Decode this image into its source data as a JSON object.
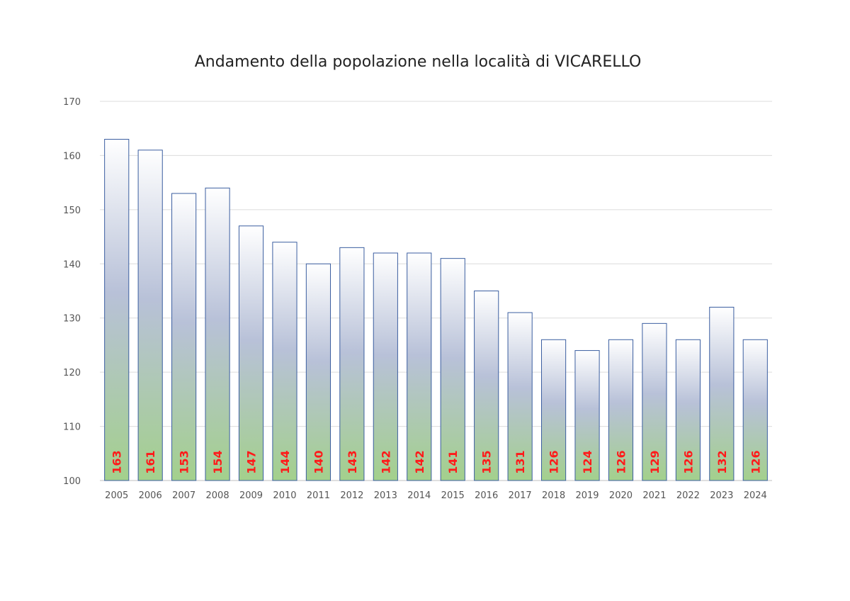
{
  "chart_data": {
    "type": "bar",
    "title": "Andamento della popolazione nella località di VICARELLO",
    "categories": [
      "2005",
      "2006",
      "2007",
      "2008",
      "2009",
      "2010",
      "2011",
      "2012",
      "2013",
      "2014",
      "2015",
      "2016",
      "2017",
      "2018",
      "2019",
      "2020",
      "2021",
      "2022",
      "2023",
      "2024"
    ],
    "values": [
      163,
      161,
      153,
      154,
      147,
      144,
      140,
      143,
      142,
      142,
      141,
      135,
      131,
      126,
      124,
      126,
      129,
      126,
      132,
      126
    ],
    "ylim": [
      100,
      170
    ],
    "yticks": [
      100,
      110,
      120,
      130,
      140,
      150,
      160,
      170
    ],
    "grid": true,
    "legend": "none",
    "xlabel": "",
    "ylabel": "",
    "colors": {
      "bar_top": "#ffffff",
      "bar_mid": "#b3bdd6",
      "bar_bottom": "#9fd18a",
      "bar_stroke": "#3b5ea0",
      "data_label": "#ff1a1a",
      "grid": "#dcdcdc"
    }
  }
}
